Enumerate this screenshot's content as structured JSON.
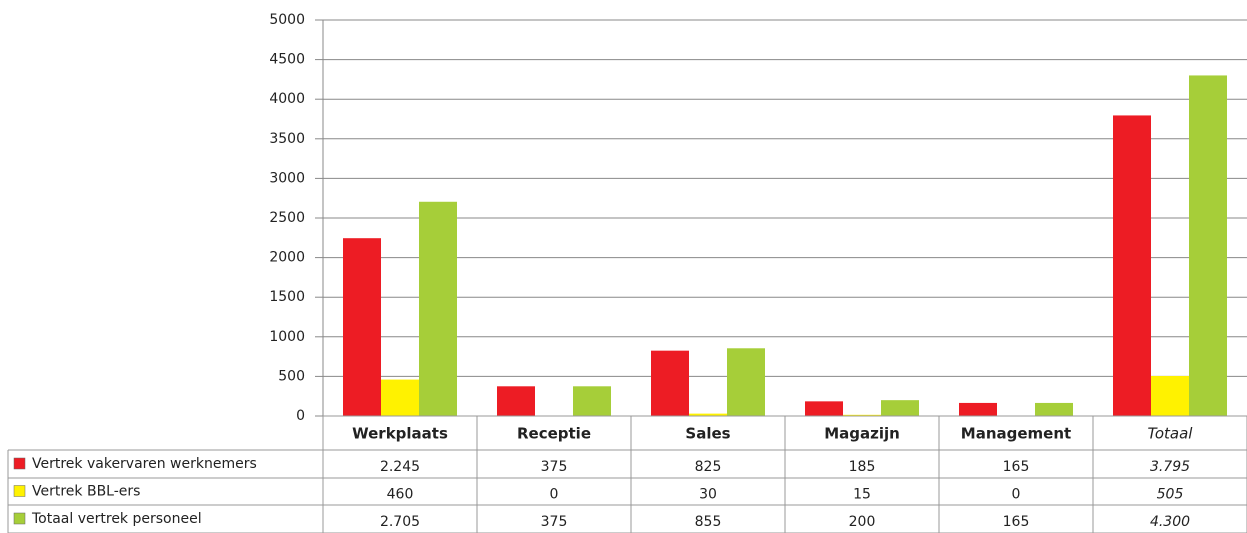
{
  "chart_data": {
    "type": "bar",
    "categories": [
      "Werkplaats",
      "Receptie",
      "Sales",
      "Magazijn",
      "Management",
      "Totaal"
    ],
    "series": [
      {
        "name": "Vertrek vakervaren werknemers",
        "color": "#ed1c24",
        "values": [
          2245,
          375,
          825,
          185,
          165,
          3795
        ],
        "value_labels": [
          "2.245",
          "375",
          "825",
          "185",
          "165",
          "3.795"
        ]
      },
      {
        "name": "Vertrek BBL-ers",
        "color": "#fff200",
        "values": [
          460,
          0,
          30,
          15,
          0,
          505
        ]
      },
      {
        "name": "Totaal vertrek personeel",
        "color": "#a6ce39",
        "values": [
          2705,
          375,
          855,
          200,
          165,
          4300
        ],
        "value_labels": [
          "2.705",
          "375",
          "855",
          "200",
          "165",
          "4.300"
        ]
      }
    ],
    "ylim": [
      0,
      5000
    ],
    "yticks": [
      0,
      500,
      1000,
      1500,
      2000,
      2500,
      3000,
      3500,
      4000,
      4500,
      5000
    ],
    "grid": true
  }
}
